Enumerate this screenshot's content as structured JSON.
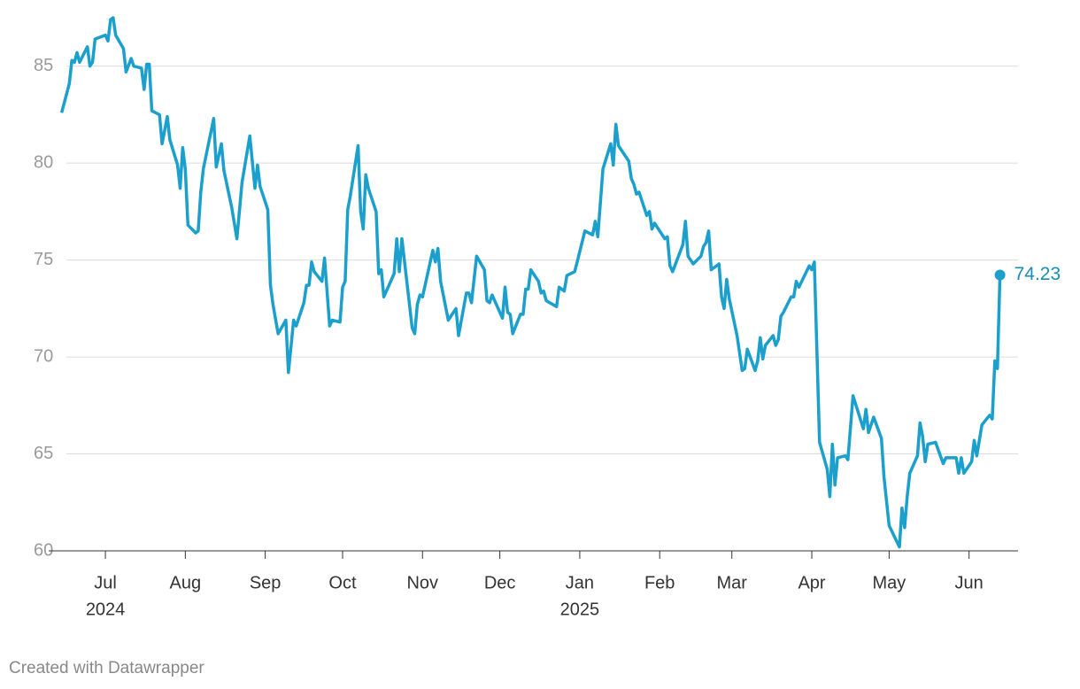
{
  "chart_data": {
    "type": "line",
    "color": "#1b9fcc",
    "grid": true,
    "credit": "Created with Datawrapper",
    "xlim": [
      "2024-06-09",
      "2025-06-20"
    ],
    "ylim": [
      60,
      87.5
    ],
    "yticks": [
      60,
      65,
      70,
      75,
      80,
      85
    ],
    "xticks": [
      {
        "value": "2024-07-01",
        "label": "Jul",
        "year": "2024"
      },
      {
        "value": "2024-08-01",
        "label": "Aug"
      },
      {
        "value": "2024-09-01",
        "label": "Sep"
      },
      {
        "value": "2024-10-01",
        "label": "Oct"
      },
      {
        "value": "2024-11-01",
        "label": "Nov"
      },
      {
        "value": "2024-12-01",
        "label": "Dec"
      },
      {
        "value": "2025-01-01",
        "label": "Jan",
        "year": "2025"
      },
      {
        "value": "2025-02-01",
        "label": "Feb"
      },
      {
        "value": "2025-03-01",
        "label": "Mar"
      },
      {
        "value": "2025-04-01",
        "label": "Apr"
      },
      {
        "value": "2025-05-01",
        "label": "May"
      },
      {
        "value": "2025-06-01",
        "label": "Jun"
      }
    ],
    "x": [
      "2024-06-14",
      "2024-06-17",
      "2024-06-18",
      "2024-06-19",
      "2024-06-20",
      "2024-06-21",
      "2024-06-24",
      "2024-06-25",
      "2024-06-26",
      "2024-06-27",
      "2024-07-01",
      "2024-07-02",
      "2024-07-03",
      "2024-07-04",
      "2024-07-05",
      "2024-07-08",
      "2024-07-09",
      "2024-07-11",
      "2024-07-12",
      "2024-07-15",
      "2024-07-16",
      "2024-07-17",
      "2024-07-18",
      "2024-07-19",
      "2024-07-22",
      "2024-07-23",
      "2024-07-25",
      "2024-07-26",
      "2024-07-29",
      "2024-07-30",
      "2024-07-31",
      "2024-08-01",
      "2024-08-02",
      "2024-08-05",
      "2024-08-06",
      "2024-08-07",
      "2024-08-08",
      "2024-08-12",
      "2024-08-13",
      "2024-08-15",
      "2024-08-16",
      "2024-08-19",
      "2024-08-21",
      "2024-08-23",
      "2024-08-26",
      "2024-08-28",
      "2024-08-29",
      "2024-08-30",
      "2024-09-02",
      "2024-09-03",
      "2024-09-04",
      "2024-09-06",
      "2024-09-09",
      "2024-09-10",
      "2024-09-12",
      "2024-09-13",
      "2024-09-16",
      "2024-09-17",
      "2024-09-18",
      "2024-09-19",
      "2024-09-20",
      "2024-09-23",
      "2024-09-24",
      "2024-09-26",
      "2024-09-27",
      "2024-09-30",
      "2024-10-01",
      "2024-10-02",
      "2024-10-03",
      "2024-10-04",
      "2024-10-07",
      "2024-10-08",
      "2024-10-09",
      "2024-10-10",
      "2024-10-11",
      "2024-10-14",
      "2024-10-15",
      "2024-10-16",
      "2024-10-17",
      "2024-10-21",
      "2024-10-22",
      "2024-10-23",
      "2024-10-24",
      "2024-10-28",
      "2024-10-29",
      "2024-10-30",
      "2024-10-31",
      "2024-11-01",
      "2024-11-05",
      "2024-11-06",
      "2024-11-07",
      "2024-11-08",
      "2024-11-11",
      "2024-11-14",
      "2024-11-15",
      "2024-11-18",
      "2024-11-19",
      "2024-11-20",
      "2024-11-22",
      "2024-11-25",
      "2024-11-26",
      "2024-11-27",
      "2024-11-28",
      "2024-12-02",
      "2024-12-03",
      "2024-12-04",
      "2024-12-05",
      "2024-12-06",
      "2024-12-09",
      "2024-12-10",
      "2024-12-11",
      "2024-12-12",
      "2024-12-13",
      "2024-12-16",
      "2024-12-17",
      "2024-12-18",
      "2024-12-19",
      "2024-12-23",
      "2024-12-24",
      "2024-12-26",
      "2024-12-27",
      "2024-12-30",
      "2024-12-31",
      "2025-01-03",
      "2025-01-06",
      "2025-01-07",
      "2025-01-08",
      "2025-01-10",
      "2025-01-13",
      "2025-01-14",
      "2025-01-15",
      "2025-01-16",
      "2025-01-20",
      "2025-01-21",
      "2025-01-22",
      "2025-01-23",
      "2025-01-24",
      "2025-01-27",
      "2025-01-28",
      "2025-01-29",
      "2025-01-30",
      "2025-01-31",
      "2025-02-03",
      "2025-02-04",
      "2025-02-05",
      "2025-02-06",
      "2025-02-10",
      "2025-02-11",
      "2025-02-12",
      "2025-02-14",
      "2025-02-17",
      "2025-02-18",
      "2025-02-19",
      "2025-02-20",
      "2025-02-21",
      "2025-02-24",
      "2025-02-25",
      "2025-02-26",
      "2025-02-27",
      "2025-02-28",
      "2025-03-03",
      "2025-03-05",
      "2025-03-06",
      "2025-03-07",
      "2025-03-10",
      "2025-03-11",
      "2025-03-12",
      "2025-03-13",
      "2025-03-14",
      "2025-03-17",
      "2025-03-18",
      "2025-03-19",
      "2025-03-20",
      "2025-03-21",
      "2025-03-24",
      "2025-03-25",
      "2025-03-26",
      "2025-03-27",
      "2025-03-31",
      "2025-04-01",
      "2025-04-02",
      "2025-04-04",
      "2025-04-07",
      "2025-04-08",
      "2025-04-09",
      "2025-04-10",
      "2025-04-11",
      "2025-04-14",
      "2025-04-15",
      "2025-04-17",
      "2025-04-21",
      "2025-04-22",
      "2025-04-23",
      "2025-04-25",
      "2025-04-28",
      "2025-04-29",
      "2025-05-01",
      "2025-05-05",
      "2025-05-06",
      "2025-05-07",
      "2025-05-08",
      "2025-05-09",
      "2025-05-12",
      "2025-05-13",
      "2025-05-14",
      "2025-05-15",
      "2025-05-16",
      "2025-05-19",
      "2025-05-22",
      "2025-05-23",
      "2025-05-27",
      "2025-05-28",
      "2025-05-29",
      "2025-05-30",
      "2025-06-02",
      "2025-06-03",
      "2025-06-04",
      "2025-06-06",
      "2025-06-09",
      "2025-06-10",
      "2025-06-11",
      "2025-06-12",
      "2025-06-13"
    ],
    "values": [
      82.6,
      84.1,
      85.3,
      85.2,
      85.7,
      85.2,
      86.0,
      85.0,
      85.2,
      86.4,
      86.6,
      86.3,
      87.4,
      87.5,
      86.6,
      85.9,
      84.7,
      85.4,
      85.0,
      84.9,
      83.8,
      85.1,
      85.1,
      82.7,
      82.5,
      81.0,
      82.4,
      81.2,
      79.9,
      78.7,
      80.8,
      79.7,
      76.8,
      76.4,
      76.5,
      78.5,
      79.7,
      82.3,
      79.8,
      81.0,
      79.6,
      77.7,
      76.1,
      79.0,
      81.4,
      78.7,
      79.9,
      78.8,
      77.6,
      73.7,
      72.7,
      71.2,
      71.9,
      69.2,
      71.9,
      71.6,
      72.8,
      73.7,
      73.7,
      74.9,
      74.4,
      73.9,
      75.1,
      71.6,
      71.9,
      71.8,
      73.6,
      73.9,
      77.6,
      78.3,
      80.9,
      77.5,
      76.6,
      79.4,
      78.7,
      77.5,
      74.3,
      74.5,
      73.1,
      74.3,
      76.1,
      74.4,
      76.1,
      71.5,
      71.2,
      72.7,
      73.2,
      73.1,
      75.5,
      74.9,
      75.6,
      73.9,
      71.9,
      72.5,
      71.1,
      73.3,
      73.3,
      72.8,
      75.2,
      74.5,
      72.9,
      72.8,
      73.2,
      72.0,
      73.6,
      72.3,
      72.2,
      71.2,
      72.2,
      72.2,
      73.5,
      73.5,
      74.5,
      73.9,
      73.3,
      73.4,
      72.9,
      72.6,
      73.6,
      73.4,
      74.2,
      74.4,
      74.9,
      76.5,
      76.3,
      77.0,
      76.2,
      79.7,
      81.0,
      79.9,
      82.0,
      80.9,
      80.1,
      79.2,
      78.9,
      78.4,
      78.5,
      77.3,
      77.5,
      76.6,
      76.9,
      76.7,
      76.1,
      76.2,
      74.7,
      74.4,
      75.8,
      77.0,
      75.2,
      74.8,
      75.2,
      75.7,
      75.9,
      76.5,
      74.5,
      74.8,
      73.1,
      72.5,
      74.0,
      73.0,
      71.1,
      69.3,
      69.4,
      70.4,
      69.3,
      69.8,
      71.0,
      69.9,
      70.6,
      71.1,
      70.6,
      70.9,
      72.1,
      72.3,
      73.1,
      73.1,
      73.9,
      73.6,
      74.7,
      74.5,
      74.9,
      65.6,
      64.2,
      62.8,
      65.5,
      63.4,
      64.8,
      64.9,
      64.7,
      68.0,
      66.3,
      67.3,
      66.1,
      66.9,
      65.8,
      63.8,
      61.3,
      60.2,
      62.2,
      61.2,
      62.8,
      64.0,
      64.9,
      66.6,
      65.9,
      64.6,
      65.5,
      65.6,
      64.5,
      64.8,
      64.8,
      64.0,
      64.8,
      64.0,
      64.6,
      65.7,
      64.9,
      66.5,
      67.0,
      66.8,
      69.8,
      69.4,
      74.23
    ]
  }
}
